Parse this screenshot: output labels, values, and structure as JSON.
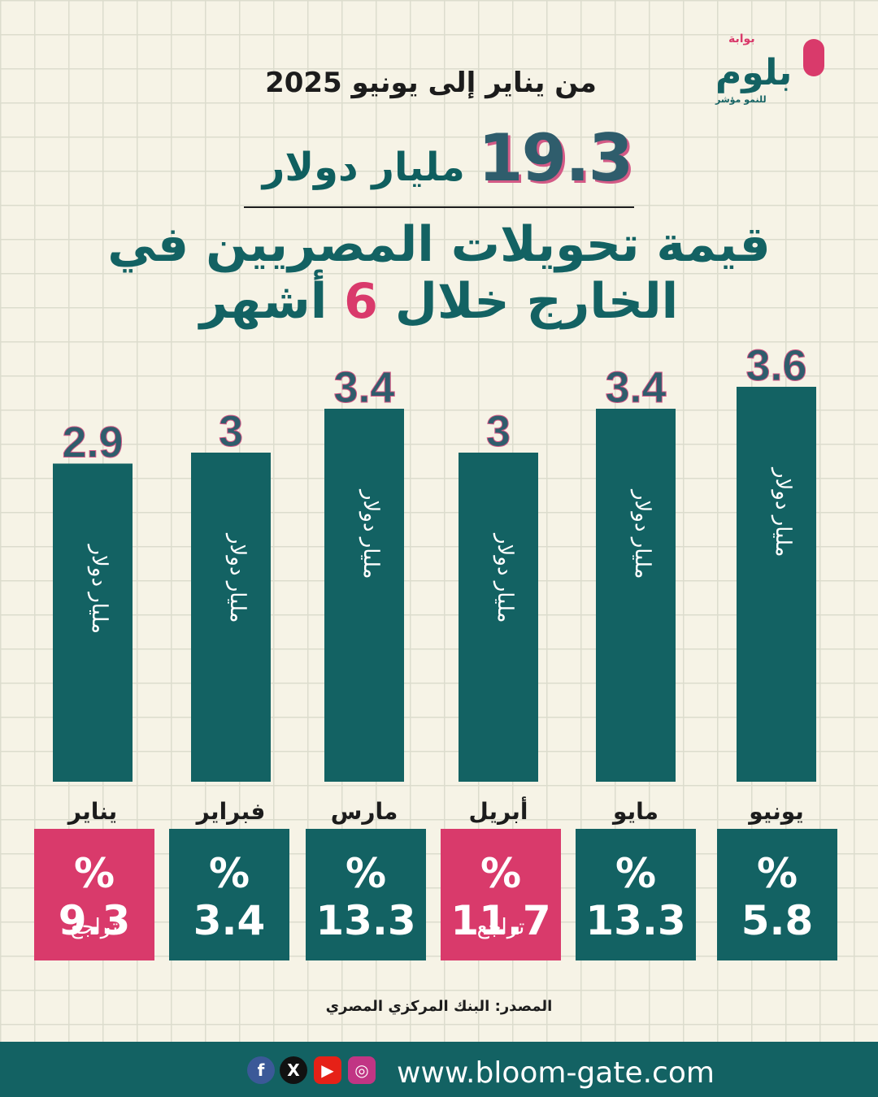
{
  "header": {
    "subtitle": "من يناير إلى يونيو 2025",
    "total_value": "19.3",
    "total_unit": "مليار دولار",
    "headline_before": "قيمة تحويلات المصريين في الخارج خلال",
    "headline_num": "6",
    "headline_after": "أشهر"
  },
  "logo": {
    "top": "بوابة",
    "name": "بلوم",
    "tagline": "للنمو مؤشر"
  },
  "chart_data": {
    "type": "bar",
    "categories": [
      "يناير",
      "فبراير",
      "مارس",
      "أبريل",
      "مايو",
      "يونيو"
    ],
    "values": [
      2.9,
      3,
      3.4,
      3,
      3.4,
      3.6
    ],
    "value_labels": [
      "2.9",
      "3",
      "3.4",
      "3",
      "3.4",
      "3.6"
    ],
    "bar_label": "مليار دولار",
    "ylim": [
      0,
      3.6
    ],
    "bar_color": "#136263",
    "changes": [
      {
        "value": "% 9.3",
        "note": "تراجع",
        "color": "#d93a6b"
      },
      {
        "value": "% 3.4",
        "note": "",
        "color": "#136263"
      },
      {
        "value": "% 13.3",
        "note": "",
        "color": "#136263"
      },
      {
        "value": "% 11.7",
        "note": "تراجع",
        "color": "#d93a6b"
      },
      {
        "value": "% 13.3",
        "note": "",
        "color": "#136263"
      },
      {
        "value": "% 5.8",
        "note": "",
        "color": "#136263"
      }
    ]
  },
  "source": "المصدر: البنك المركزي المصري",
  "footer": {
    "website": "www.bloom-gate.com",
    "social_icons": [
      "facebook-icon",
      "x-icon",
      "youtube-icon",
      "instagram-icon"
    ]
  },
  "colors": {
    "teal": "#136263",
    "pink": "#d93a6b",
    "background": "#f6f3e6"
  }
}
